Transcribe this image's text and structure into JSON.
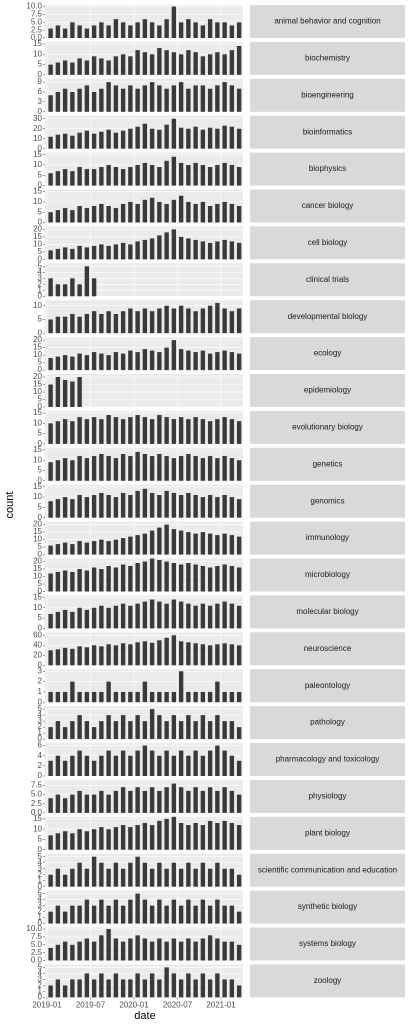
{
  "chart_data": {
    "type": "bar",
    "x_label": "date",
    "y_label": "count",
    "color": "#3a3a3a",
    "grid": true,
    "x": [
      "2019-01",
      "2019-02",
      "2019-03",
      "2019-04",
      "2019-05",
      "2019-06",
      "2019-07",
      "2019-08",
      "2019-09",
      "2019-10",
      "2019-11",
      "2019-12",
      "2020-01",
      "2020-02",
      "2020-03",
      "2020-04",
      "2020-05",
      "2020-06",
      "2020-07",
      "2020-08",
      "2020-09",
      "2020-10",
      "2020-11",
      "2020-12",
      "2021-01",
      "2021-02",
      "2021-03"
    ],
    "xticks": [
      "2019-01",
      "2019-07",
      "2020-01",
      "2020-07",
      "2021-01"
    ],
    "series": [
      {
        "name": "animal behavior and cognition",
        "ylim": [
          0,
          10.5
        ],
        "yticks": [
          {
            "value": 0,
            "label": "0.0"
          },
          2.5,
          {
            "value": 5,
            "label": "5.0"
          },
          7.5,
          {
            "value": 10,
            "label": "10.0"
          }
        ],
        "values": [
          3,
          4,
          3,
          5,
          4,
          3,
          4,
          5,
          4,
          6,
          5,
          4,
          5,
          6,
          5,
          4,
          6,
          10,
          5,
          6,
          5,
          4,
          6,
          5,
          5,
          4,
          5
        ]
      },
      {
        "name": "biochemistry",
        "ylim": [
          0,
          16
        ],
        "yticks": [
          0,
          5,
          10,
          15
        ],
        "values": [
          5,
          6,
          7,
          6,
          8,
          7,
          9,
          8,
          7,
          9,
          10,
          9,
          12,
          11,
          10,
          13,
          12,
          11,
          10,
          12,
          11,
          9,
          10,
          11,
          10,
          12,
          14
        ]
      },
      {
        "name": "bioengineering",
        "ylim": [
          0,
          10
        ],
        "yticks": [
          0,
          3,
          6,
          9
        ],
        "values": [
          5,
          6,
          7,
          6,
          7,
          8,
          6,
          7,
          9,
          8,
          7,
          8,
          7,
          8,
          9,
          8,
          7,
          8,
          9,
          7,
          8,
          8,
          7,
          8,
          9,
          8,
          7
        ]
      },
      {
        "name": "bioinformatics",
        "ylim": [
          0,
          33
        ],
        "yticks": [
          0,
          10,
          20,
          30
        ],
        "values": [
          12,
          14,
          15,
          13,
          16,
          18,
          15,
          17,
          19,
          16,
          18,
          20,
          22,
          25,
          20,
          19,
          24,
          30,
          21,
          20,
          22,
          19,
          21,
          20,
          23,
          22,
          20
        ]
      },
      {
        "name": "biophysics",
        "ylim": [
          0,
          16
        ],
        "yticks": [
          0,
          5,
          10,
          15
        ],
        "values": [
          6,
          7,
          8,
          7,
          9,
          8,
          8,
          9,
          10,
          9,
          8,
          9,
          10,
          11,
          10,
          9,
          12,
          14,
          11,
          10,
          11,
          10,
          9,
          10,
          11,
          10,
          9
        ]
      },
      {
        "name": "cancer biology",
        "ylim": [
          0,
          16
        ],
        "yticks": [
          0,
          5,
          10,
          15
        ],
        "values": [
          5,
          6,
          7,
          6,
          8,
          7,
          8,
          9,
          8,
          7,
          9,
          10,
          9,
          11,
          12,
          10,
          9,
          11,
          13,
          10,
          9,
          10,
          8,
          9,
          10,
          9,
          8
        ]
      },
      {
        "name": "cell biology",
        "ylim": [
          0,
          22
        ],
        "yticks": [
          0,
          5,
          10,
          15,
          20
        ],
        "values": [
          6,
          7,
          8,
          7,
          9,
          8,
          9,
          10,
          9,
          10,
          11,
          10,
          12,
          13,
          14,
          16,
          18,
          20,
          15,
          14,
          13,
          12,
          11,
          12,
          13,
          12,
          11
        ]
      },
      {
        "name": "clinical trials",
        "ylim": [
          0,
          5.5
        ],
        "yticks": [
          0,
          1,
          2,
          3,
          4,
          5
        ],
        "values": [
          3,
          2,
          2,
          3,
          2,
          5,
          3,
          null,
          null,
          null,
          null,
          null,
          null,
          null,
          null,
          null,
          null,
          null,
          null,
          null,
          null,
          null,
          null,
          null,
          null,
          null,
          null
        ]
      },
      {
        "name": "developmental biology",
        "ylim": [
          0,
          12
        ],
        "yticks": [
          0,
          5,
          10
        ],
        "values": [
          5,
          6,
          6,
          7,
          6,
          7,
          8,
          7,
          8,
          7,
          8,
          9,
          8,
          9,
          8,
          9,
          10,
          9,
          10,
          9,
          8,
          9,
          10,
          11,
          9,
          8,
          9
        ]
      },
      {
        "name": "ecology",
        "ylim": [
          0,
          22
        ],
        "yticks": [
          0,
          5,
          10,
          15,
          20
        ],
        "values": [
          8,
          9,
          10,
          9,
          11,
          10,
          12,
          11,
          10,
          12,
          11,
          13,
          12,
          14,
          13,
          12,
          15,
          20,
          14,
          13,
          12,
          13,
          11,
          12,
          13,
          12,
          11
        ]
      },
      {
        "name": "epidemiology",
        "ylim": [
          0,
          22
        ],
        "yticks": [
          0,
          5,
          10,
          15,
          20
        ],
        "values": [
          15,
          20,
          18,
          17,
          20,
          null,
          null,
          null,
          null,
          null,
          null,
          null,
          null,
          null,
          null,
          null,
          null,
          null,
          null,
          null,
          null,
          null,
          null,
          null,
          null,
          null,
          null
        ]
      },
      {
        "name": "evolutionary biology",
        "ylim": [
          0,
          16
        ],
        "yticks": [
          0,
          5,
          10,
          15
        ],
        "values": [
          10,
          11,
          12,
          11,
          13,
          12,
          13,
          12,
          14,
          13,
          12,
          13,
          14,
          13,
          12,
          14,
          13,
          12,
          13,
          12,
          13,
          12,
          11,
          12,
          13,
          12,
          11
        ]
      },
      {
        "name": "genetics",
        "ylim": [
          0,
          16
        ],
        "yticks": [
          0,
          5,
          10,
          15
        ],
        "values": [
          9,
          10,
          11,
          10,
          12,
          11,
          12,
          13,
          12,
          11,
          13,
          12,
          14,
          13,
          12,
          13,
          12,
          11,
          12,
          13,
          12,
          11,
          12,
          11,
          12,
          11,
          10
        ]
      },
      {
        "name": "genomics",
        "ylim": [
          0,
          16
        ],
        "yticks": [
          0,
          5,
          10,
          15
        ],
        "values": [
          8,
          9,
          10,
          9,
          11,
          10,
          11,
          12,
          11,
          10,
          12,
          11,
          13,
          14,
          12,
          11,
          13,
          12,
          11,
          12,
          11,
          10,
          11,
          10,
          11,
          10,
          9
        ]
      },
      {
        "name": "immunology",
        "ylim": [
          0,
          22
        ],
        "yticks": [
          0,
          5,
          10,
          15,
          20
        ],
        "values": [
          6,
          7,
          8,
          7,
          9,
          8,
          9,
          10,
          9,
          10,
          11,
          12,
          13,
          14,
          16,
          18,
          20,
          17,
          16,
          15,
          14,
          15,
          14,
          13,
          14,
          13,
          12
        ]
      },
      {
        "name": "microbiology",
        "ylim": [
          0,
          22
        ],
        "yticks": [
          0,
          5,
          10,
          15,
          20
        ],
        "values": [
          12,
          13,
          14,
          13,
          15,
          14,
          16,
          15,
          17,
          16,
          18,
          17,
          19,
          20,
          22,
          21,
          20,
          19,
          18,
          19,
          18,
          17,
          16,
          17,
          18,
          17,
          16
        ]
      },
      {
        "name": "molecular biology",
        "ylim": [
          0,
          16
        ],
        "yticks": [
          0,
          5,
          10,
          15
        ],
        "values": [
          7,
          8,
          9,
          8,
          10,
          9,
          10,
          11,
          10,
          11,
          12,
          11,
          12,
          13,
          14,
          13,
          12,
          14,
          13,
          12,
          11,
          12,
          11,
          12,
          13,
          12,
          11
        ]
      },
      {
        "name": "neuroscience",
        "ylim": [
          0,
          66
        ],
        "yticks": [
          0,
          20,
          40,
          60
        ],
        "values": [
          30,
          32,
          35,
          33,
          38,
          36,
          40,
          38,
          42,
          40,
          44,
          42,
          46,
          48,
          45,
          50,
          55,
          60,
          48,
          46,
          44,
          42,
          40,
          42,
          44,
          42,
          40
        ]
      },
      {
        "name": "paleontology",
        "ylim": [
          0,
          3.2
        ],
        "yticks": [
          0,
          1,
          2,
          3
        ],
        "values": [
          1,
          1,
          1,
          2,
          1,
          1,
          1,
          1,
          2,
          1,
          1,
          1,
          1,
          2,
          1,
          1,
          1,
          1,
          3,
          1,
          1,
          1,
          1,
          2,
          1,
          1,
          1
        ]
      },
      {
        "name": "pathology",
        "ylim": [
          0,
          5.5
        ],
        "yticks": [
          0,
          1,
          2,
          3,
          4,
          5
        ],
        "values": [
          2,
          3,
          2,
          3,
          4,
          3,
          2,
          3,
          4,
          3,
          4,
          3,
          4,
          3,
          5,
          4,
          3,
          4,
          3,
          4,
          3,
          4,
          3,
          4,
          3,
          3,
          2
        ]
      },
      {
        "name": "pharmacology and toxicology",
        "ylim": [
          0,
          6.5
        ],
        "yticks": [
          0,
          2,
          4,
          6
        ],
        "values": [
          3,
          4,
          3,
          4,
          5,
          4,
          3,
          4,
          5,
          4,
          5,
          4,
          5,
          6,
          5,
          4,
          5,
          4,
          5,
          4,
          5,
          4,
          5,
          6,
          5,
          4,
          3
        ]
      },
      {
        "name": "physiology",
        "ylim": [
          0,
          9
        ],
        "yticks": [
          {
            "value": 0,
            "label": "0.0"
          },
          2.5,
          {
            "value": 5,
            "label": "5.0"
          },
          7.5
        ],
        "values": [
          4,
          5,
          4,
          5,
          6,
          5,
          5,
          6,
          5,
          6,
          7,
          6,
          7,
          6,
          7,
          6,
          7,
          8,
          7,
          6,
          7,
          6,
          7,
          6,
          7,
          6,
          5
        ]
      },
      {
        "name": "plant biology",
        "ylim": [
          0,
          16
        ],
        "yticks": [
          0,
          5,
          10,
          15
        ],
        "values": [
          7,
          8,
          9,
          8,
          10,
          9,
          10,
          11,
          10,
          11,
          12,
          11,
          12,
          13,
          12,
          14,
          15,
          16,
          13,
          12,
          13,
          12,
          14,
          13,
          14,
          13,
          12
        ]
      },
      {
        "name": "scientific communication and education",
        "ylim": [
          0,
          5.5
        ],
        "yticks": [
          0,
          1,
          2,
          3,
          4,
          5
        ],
        "values": [
          2,
          3,
          2,
          3,
          4,
          3,
          5,
          4,
          3,
          4,
          3,
          4,
          5,
          4,
          3,
          4,
          3,
          4,
          3,
          4,
          3,
          4,
          3,
          4,
          3,
          3,
          2
        ]
      },
      {
        "name": "synthetic biology",
        "ylim": [
          0,
          5.5
        ],
        "yticks": [
          0,
          1,
          2,
          3,
          4,
          5
        ],
        "values": [
          2,
          3,
          2,
          3,
          3,
          4,
          3,
          4,
          3,
          4,
          3,
          4,
          5,
          4,
          3,
          4,
          3,
          4,
          3,
          4,
          3,
          4,
          3,
          4,
          3,
          3,
          2
        ]
      },
      {
        "name": "systems biology",
        "ylim": [
          0,
          10.5
        ],
        "yticks": [
          {
            "value": 0,
            "label": "0.0"
          },
          2.5,
          {
            "value": 5,
            "label": "5.0"
          },
          7.5,
          {
            "value": 10,
            "label": "10.0"
          }
        ],
        "values": [
          4,
          5,
          6,
          5,
          6,
          7,
          6,
          8,
          10,
          7,
          6,
          7,
          8,
          7,
          6,
          7,
          6,
          7,
          6,
          7,
          6,
          7,
          8,
          7,
          6,
          6,
          5
        ]
      },
      {
        "name": "zoology",
        "ylim": [
          0,
          5.5
        ],
        "yticks": [
          0,
          1,
          2,
          3,
          4,
          5
        ],
        "values": [
          2,
          3,
          2,
          3,
          3,
          4,
          3,
          4,
          3,
          4,
          3,
          3,
          4,
          3,
          4,
          3,
          5,
          4,
          3,
          4,
          3,
          4,
          3,
          4,
          3,
          3,
          2
        ]
      }
    ]
  }
}
